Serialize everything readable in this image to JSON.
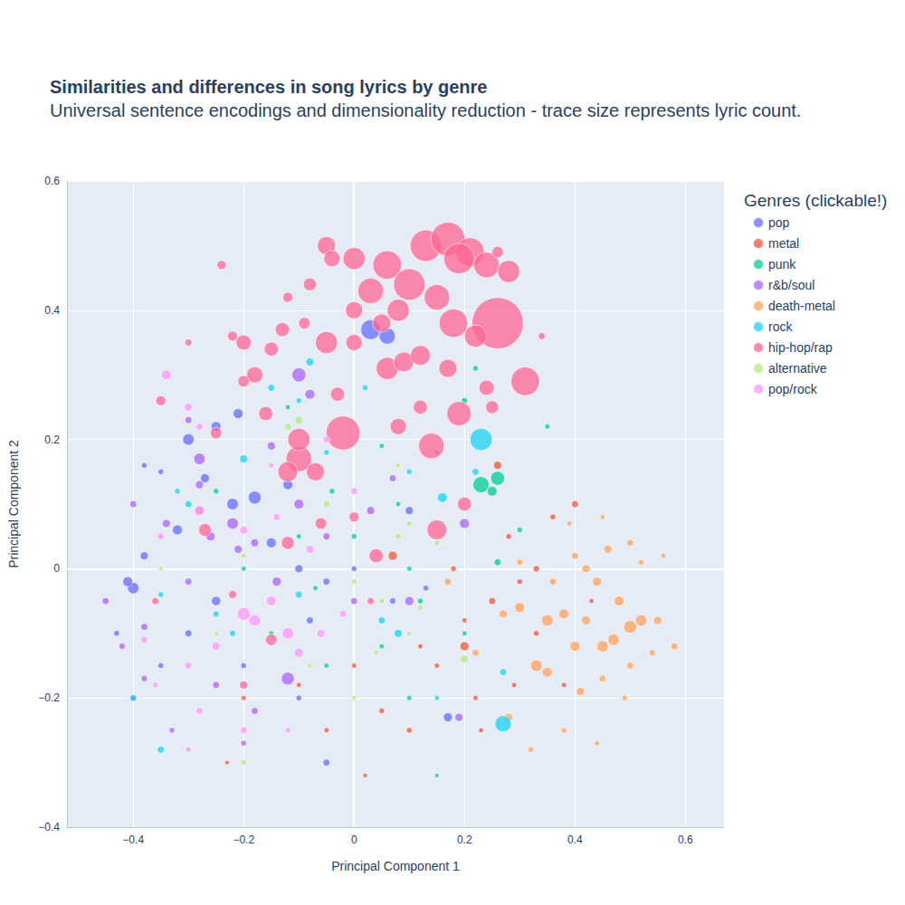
{
  "chart_data": {
    "type": "scatter",
    "title": "Similarities and differences in song lyrics by genre",
    "subtitle": "Universal sentence encodings and dimensionality reduction - trace size represents lyric count.",
    "x_label": "Principal Component 1",
    "y_label": "Principal Component 2",
    "legend_title": "Genres (clickable!)",
    "legend": "right",
    "grid": true,
    "marker": "circle",
    "xlim": [
      -0.52,
      0.67
    ],
    "xticks": [
      {
        "value": -0.4,
        "label": "−0.4"
      },
      {
        "value": -0.2,
        "label": "−0.2"
      },
      0,
      0.2,
      0.4,
      0.6
    ],
    "ylim": [
      -0.4,
      0.6
    ],
    "yticks": [
      {
        "value": -0.4,
        "label": "−0.4"
      },
      {
        "value": -0.2,
        "label": "−0.2"
      },
      0,
      0.2,
      0.4,
      0.6
    ],
    "series": [
      {
        "name": "pop",
        "color": "#636efa",
        "x": [
          -0.4,
          -0.41,
          -0.38,
          -0.35,
          -0.3,
          -0.27,
          -0.25,
          -0.21,
          -0.18,
          -0.15,
          -0.1,
          -0.05,
          0,
          0.03,
          0.06,
          -0.25,
          -0.3,
          -0.35,
          -0.4,
          -0.2,
          -0.1,
          -0.05,
          0.07,
          0.1,
          -0.32,
          -0.22,
          -0.12,
          -0.08,
          0.13,
          -0.43,
          -0.38,
          0.17
        ],
        "y": [
          -0.03,
          -0.02,
          0.02,
          0.15,
          0.2,
          0.14,
          0.22,
          0.24,
          0.11,
          0.04,
          0,
          -0.02,
          0,
          0.37,
          0.36,
          -0.05,
          -0.1,
          -0.15,
          -0.2,
          -0.15,
          -0.2,
          -0.3,
          -0.05,
          0.09,
          0.06,
          0.1,
          0.13,
          -0.08,
          -0.03,
          -0.1,
          0.16,
          -0.23
        ],
        "sizes": [
          40,
          30,
          20,
          10,
          40,
          25,
          30,
          30,
          50,
          30,
          20,
          15,
          10,
          120,
          80,
          25,
          15,
          10,
          15,
          10,
          10,
          15,
          12,
          20,
          30,
          40,
          30,
          15,
          10,
          10,
          10,
          25
        ]
      },
      {
        "name": "metal",
        "color": "#EF553B",
        "x": [
          0.2,
          0.25,
          0.3,
          0.33,
          0.36,
          0.4,
          0.28,
          0.22,
          0.15,
          0.1,
          0.05,
          0.18,
          0.26,
          0.33,
          0.38,
          0.23,
          -0.05,
          -0.2,
          -0.23,
          0.12,
          0,
          -0.1,
          0.07,
          0.2,
          0.29,
          0.02,
          0.43
        ],
        "y": [
          -0.12,
          -0.05,
          -0.02,
          -0.1,
          0.08,
          0.1,
          0.05,
          -0.2,
          -0.15,
          -0.25,
          -0.22,
          0,
          0.16,
          0,
          -0.18,
          -0.25,
          -0.25,
          -0.2,
          -0.3,
          -0.12,
          -0.15,
          -0.18,
          0.02,
          -0.08,
          -0.18,
          -0.32,
          -0.05
        ],
        "sizes": [
          25,
          15,
          10,
          10,
          10,
          15,
          10,
          8,
          8,
          10,
          10,
          10,
          20,
          12,
          8,
          8,
          8,
          8,
          6,
          8,
          8,
          8,
          25,
          8,
          8,
          6,
          8
        ]
      },
      {
        "name": "punk",
        "color": "#00cc96",
        "x": [
          0.23,
          0.26,
          0.25,
          0.26,
          0.22,
          0.2,
          0.15,
          0.05,
          -0.04,
          -0.1,
          0,
          0.1,
          0.12,
          0.2,
          0.05,
          -0.05,
          -0.15,
          -0.2,
          0.1,
          0.15,
          0.3,
          0.35,
          -0.25,
          -0.12,
          0.08,
          -0.07
        ],
        "y": [
          0.13,
          0.14,
          0.12,
          0.01,
          0.31,
          0.26,
          0.18,
          0.19,
          0.12,
          0.05,
          0.05,
          0,
          -0.05,
          -0.1,
          -0.12,
          -0.15,
          -0.1,
          0,
          -0.2,
          -0.32,
          0.06,
          0.22,
          0.12,
          0.25,
          0.1,
          -0.03
        ],
        "sizes": [
          80,
          60,
          30,
          15,
          10,
          12,
          8,
          8,
          10,
          8,
          10,
          8,
          10,
          8,
          8,
          8,
          8,
          8,
          8,
          6,
          10,
          8,
          10,
          8,
          8,
          8
        ]
      },
      {
        "name": "r&b/soul",
        "color": "#ab63fa",
        "x": [
          -0.45,
          -0.42,
          -0.38,
          -0.34,
          -0.3,
          -0.26,
          -0.22,
          -0.18,
          -0.14,
          -0.1,
          -0.08,
          -0.1,
          -0.05,
          0,
          -0.12,
          -0.18,
          -0.25,
          -0.33,
          -0.38,
          -0.28,
          -0.21,
          0.03,
          0.07,
          0.1,
          0.19,
          0.2,
          -0.3,
          -0.4,
          -0.2,
          -0.15,
          -0.28
        ],
        "y": [
          -0.05,
          -0.12,
          -0.09,
          0.07,
          -0.02,
          0.05,
          0.07,
          0.04,
          -0.02,
          0.3,
          0.27,
          0.1,
          0.05,
          -0.05,
          -0.17,
          -0.22,
          -0.18,
          -0.25,
          -0.17,
          0.17,
          0.03,
          0.09,
          0.14,
          -0.05,
          -0.23,
          0.07,
          0.23,
          0.1,
          -0.27,
          0.19,
          0.13
        ],
        "sizes": [
          15,
          12,
          15,
          20,
          15,
          25,
          40,
          20,
          25,
          60,
          30,
          30,
          15,
          15,
          50,
          15,
          15,
          10,
          12,
          40,
          20,
          20,
          15,
          25,
          20,
          30,
          15,
          15,
          10,
          20,
          20
        ]
      },
      {
        "name": "death-metal",
        "color": "#FFA15A",
        "x": [
          0.35,
          0.38,
          0.4,
          0.45,
          0.47,
          0.5,
          0.52,
          0.55,
          0.48,
          0.44,
          0.42,
          0.46,
          0.5,
          0.52,
          0.4,
          0.36,
          0.3,
          0.27,
          0.33,
          0.35,
          0.41,
          0.45,
          0.5,
          0.38,
          0.28,
          0.22,
          0.17,
          0.54,
          0.58,
          0.45,
          0.39,
          0.32,
          0.44,
          0.49,
          0.3,
          0.56,
          0.42
        ],
        "y": [
          -0.08,
          -0.07,
          -0.12,
          -0.12,
          -0.11,
          -0.09,
          -0.08,
          -0.08,
          -0.05,
          -0.02,
          0,
          0.03,
          0.04,
          0.01,
          0.02,
          -0.02,
          -0.06,
          -0.07,
          -0.15,
          -0.16,
          -0.19,
          -0.17,
          -0.15,
          -0.25,
          -0.23,
          -0.13,
          -0.02,
          -0.13,
          -0.12,
          0.08,
          0.07,
          -0.28,
          -0.27,
          -0.2,
          0.01,
          0.02,
          -0.08
        ],
        "sizes": [
          40,
          30,
          30,
          40,
          40,
          50,
          40,
          20,
          30,
          25,
          20,
          20,
          15,
          10,
          15,
          15,
          30,
          20,
          40,
          30,
          20,
          15,
          15,
          10,
          20,
          15,
          15,
          12,
          15,
          8,
          8,
          10,
          8,
          10,
          12,
          8,
          25
        ]
      },
      {
        "name": "rock",
        "color": "#19d3f3",
        "x": [
          0.23,
          0.27,
          0.16,
          0.27,
          -0.35,
          -0.4,
          -0.2,
          -0.15,
          -0.08,
          -0.1,
          0.05,
          0.08,
          -0.3,
          -0.25,
          -0.05,
          0.1,
          0.22,
          -0.32,
          0.02,
          -0.22,
          0.15,
          -0.1,
          -0.35
        ],
        "y": [
          0.2,
          -0.24,
          0.11,
          -0.16,
          -0.28,
          -0.2,
          0.17,
          0.28,
          0.32,
          -0.04,
          -0.08,
          -0.1,
          0.1,
          -0.07,
          0.18,
          0.15,
          0.15,
          0.12,
          0.28,
          -0.1,
          -0.2,
          0.26,
          -0.04
        ],
        "sizes": [
          150,
          80,
          30,
          15,
          15,
          12,
          20,
          15,
          20,
          15,
          15,
          20,
          15,
          12,
          10,
          10,
          15,
          10,
          10,
          12,
          8,
          10,
          10
        ]
      },
      {
        "name": "hip-hop/rap",
        "color": "#FF6692",
        "x": [
          0.13,
          0.17,
          0.21,
          0.26,
          0.19,
          0.24,
          0.06,
          0.1,
          0,
          -0.05,
          -0.04,
          0.03,
          0.08,
          0.15,
          0.18,
          0.22,
          0.28,
          0.31,
          0.05,
          0,
          -0.05,
          -0.08,
          -0.09,
          -0.12,
          -0.13,
          -0.15,
          -0.22,
          -0.24,
          -0.3,
          -0.35,
          0.34,
          0.26,
          -0.02,
          -0.1,
          -0.12,
          -0.07,
          -0.1,
          0.14,
          0.19,
          0.24,
          0.25,
          0.08,
          0.12,
          0.06,
          0.09,
          -0.03,
          -0.18,
          -0.2,
          -0.16,
          -0.2,
          -0.25,
          -0.28,
          -0.27,
          0.2,
          0.15,
          0.04,
          -0.12,
          -0.06,
          0,
          -0.22,
          -0.15,
          -0.2,
          0.03,
          -0.36,
          0.12,
          0.17,
          0
        ],
        "y": [
          0.5,
          0.51,
          0.49,
          0.38,
          0.48,
          0.47,
          0.47,
          0.44,
          0.48,
          0.5,
          0.48,
          0.43,
          0.4,
          0.42,
          0.38,
          0.36,
          0.46,
          0.29,
          0.38,
          0.35,
          0.35,
          0.44,
          0.38,
          0.42,
          0.37,
          0.34,
          0.36,
          0.47,
          0.35,
          0.26,
          0.36,
          0.49,
          0.21,
          0.17,
          0.15,
          0.15,
          0.2,
          0.19,
          0.24,
          0.28,
          0.25,
          0.22,
          0.25,
          0.31,
          0.32,
          0.27,
          0.3,
          0.35,
          0.24,
          0.29,
          0.21,
          0.09,
          0.06,
          0.1,
          0.06,
          0.02,
          0.04,
          0.07,
          0.08,
          -0.04,
          -0.11,
          -0.18,
          -0.05,
          -0.05,
          0.33,
          0.31,
          0.4
        ],
        "sizes": [
          300,
          350,
          250,
          800,
          280,
          200,
          250,
          300,
          150,
          100,
          80,
          200,
          150,
          200,
          250,
          150,
          150,
          250,
          100,
          80,
          150,
          50,
          40,
          30,
          60,
          60,
          30,
          25,
          15,
          30,
          15,
          40,
          350,
          200,
          120,
          100,
          150,
          200,
          180,
          70,
          50,
          80,
          60,
          150,
          120,
          60,
          80,
          70,
          60,
          40,
          40,
          30,
          50,
          60,
          120,
          60,
          50,
          40,
          30,
          20,
          40,
          20,
          15,
          15,
          120,
          100,
          90
        ]
      },
      {
        "name": "alternative",
        "color": "#B6E880",
        "x": [
          -0.05,
          0,
          0.05,
          0.1,
          -0.15,
          -0.2,
          -0.25,
          -0.12,
          -0.1,
          0.08,
          0.12,
          0.2,
          0,
          -0.3,
          -0.2,
          0.1,
          -0.08,
          0.15,
          -0.35,
          0.04,
          0.08
        ],
        "y": [
          0.1,
          -0.02,
          -0.05,
          -0.1,
          -0.05,
          0.02,
          -0.1,
          0.22,
          0.23,
          0.05,
          -0.06,
          -0.14,
          -0.2,
          -0.28,
          -0.3,
          0.07,
          -0.15,
          0.04,
          0,
          -0.13,
          0.16
        ],
        "sizes": [
          15,
          10,
          10,
          8,
          10,
          10,
          8,
          15,
          20,
          10,
          10,
          20,
          8,
          8,
          10,
          10,
          8,
          10,
          8,
          8,
          8
        ]
      },
      {
        "name": "pop/rock",
        "color": "#FF97FF",
        "x": [
          -0.34,
          -0.3,
          -0.28,
          -0.2,
          -0.18,
          -0.15,
          -0.12,
          -0.1,
          -0.06,
          -0.02,
          -0.25,
          -0.3,
          -0.38,
          -0.35,
          -0.28,
          -0.2,
          -0.14,
          -0.08,
          -0.05,
          -0.28,
          -0.2,
          0,
          -0.15,
          -0.36,
          -0.12,
          -0.3
        ],
        "y": [
          0.3,
          0.25,
          0.22,
          -0.07,
          -0.08,
          -0.05,
          -0.1,
          -0.13,
          -0.1,
          -0.07,
          -0.12,
          -0.15,
          -0.11,
          0.05,
          0.09,
          0.06,
          0.08,
          0.03,
          0.2,
          -0.22,
          -0.25,
          0.12,
          0.16,
          -0.18,
          -0.25,
          -0.28
        ],
        "sizes": [
          30,
          20,
          15,
          50,
          40,
          30,
          40,
          25,
          20,
          15,
          20,
          15,
          15,
          15,
          25,
          20,
          15,
          20,
          15,
          15,
          15,
          15,
          10,
          10,
          10,
          10
        ]
      }
    ]
  }
}
